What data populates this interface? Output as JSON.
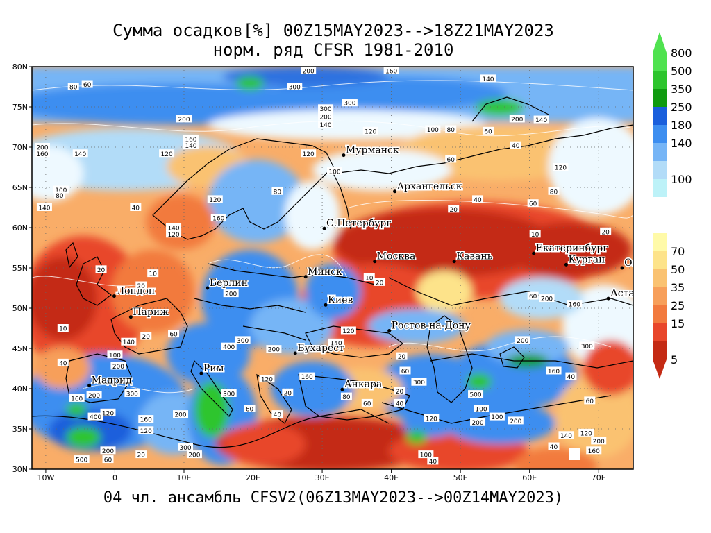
{
  "title_line1": "Сумма осадков[%] 00Z15MAY2023-->18Z21MAY2023",
  "title_line2": "норм. ряд CFSR 1981-2010",
  "footer": "04 чл. ансамбль CFSV2(06Z13MAY2023-->00Z14MAY2023)",
  "map": {
    "lon_range": [
      -12,
      75
    ],
    "lat_range": [
      30,
      80
    ],
    "lon_ticks": [
      {
        "lon": -10,
        "label": "10W"
      },
      {
        "lon": 0,
        "label": "0"
      },
      {
        "lon": 10,
        "label": "10E"
      },
      {
        "lon": 20,
        "label": "20E"
      },
      {
        "lon": 30,
        "label": "30E"
      },
      {
        "lon": 40,
        "label": "40E"
      },
      {
        "lon": 50,
        "label": "50E"
      },
      {
        "lon": 60,
        "label": "60E"
      },
      {
        "lon": 70,
        "label": "70E"
      }
    ],
    "lat_ticks": [
      {
        "lat": 30,
        "label": "30N"
      },
      {
        "lat": 35,
        "label": "35N"
      },
      {
        "lat": 40,
        "label": "40N"
      },
      {
        "lat": 45,
        "label": "45N"
      },
      {
        "lat": 50,
        "label": "50N"
      },
      {
        "lat": 55,
        "label": "55N"
      },
      {
        "lat": 60,
        "label": "60N"
      },
      {
        "lat": 65,
        "label": "65N"
      },
      {
        "lat": 70,
        "label": "70N"
      },
      {
        "lat": 75,
        "label": "75N"
      },
      {
        "lat": 80,
        "label": "80N"
      }
    ],
    "cities": [
      {
        "name": "Мурманск",
        "lon": 33.1,
        "lat": 69.0
      },
      {
        "name": "Архангельск",
        "lon": 40.5,
        "lat": 64.5
      },
      {
        "name": "С.Петербург",
        "lon": 30.3,
        "lat": 59.9
      },
      {
        "name": "Москва",
        "lon": 37.6,
        "lat": 55.8
      },
      {
        "name": "Казань",
        "lon": 49.1,
        "lat": 55.8
      },
      {
        "name": "Екатеринбург",
        "lon": 60.6,
        "lat": 56.8
      },
      {
        "name": "Курган",
        "lon": 65.3,
        "lat": 55.4
      },
      {
        "name": "Омск",
        "lon": 73.4,
        "lat": 55.0
      },
      {
        "name": "Астана",
        "lon": 71.4,
        "lat": 51.2
      },
      {
        "name": "Минск",
        "lon": 27.6,
        "lat": 53.9
      },
      {
        "name": "Берлин",
        "lon": 13.4,
        "lat": 52.5
      },
      {
        "name": "Лондон",
        "lon": -0.1,
        "lat": 51.5
      },
      {
        "name": "Париж",
        "lon": 2.3,
        "lat": 48.9
      },
      {
        "name": "Киев",
        "lon": 30.5,
        "lat": 50.4
      },
      {
        "name": "Ростов-на-Дону",
        "lon": 39.7,
        "lat": 47.2
      },
      {
        "name": "Бухарест",
        "lon": 26.1,
        "lat": 44.4
      },
      {
        "name": "Рим",
        "lon": 12.5,
        "lat": 41.9
      },
      {
        "name": "Мадрид",
        "lon": -3.7,
        "lat": 40.4
      },
      {
        "name": "Анкара",
        "lon": 32.9,
        "lat": 39.9
      }
    ],
    "contour_labels": [
      {
        "v": "200",
        "lon": 28,
        "lat": 79.5
      },
      {
        "v": "160",
        "lon": 40,
        "lat": 79.5
      },
      {
        "v": "80",
        "lon": -6,
        "lat": 77.5
      },
      {
        "v": "60",
        "lon": -4,
        "lat": 77.8
      },
      {
        "v": "300",
        "lon": 26,
        "lat": 77.5
      },
      {
        "v": "300",
        "lon": 34,
        "lat": 75.5
      },
      {
        "v": "200",
        "lon": 10,
        "lat": 73.5
      },
      {
        "v": "140",
        "lon": 54,
        "lat": 78.5
      },
      {
        "v": "300",
        "lon": 30.5,
        "lat": 74.8
      },
      {
        "v": "200",
        "lon": 30.5,
        "lat": 73.8
      },
      {
        "v": "140",
        "lon": 30.5,
        "lat": 72.8
      },
      {
        "v": "120",
        "lon": 37,
        "lat": 72
      },
      {
        "v": "100",
        "lon": 46,
        "lat": 72.2
      },
      {
        "v": "80",
        "lon": 48.6,
        "lat": 72.2
      },
      {
        "v": "200",
        "lon": 58.2,
        "lat": 73.5
      },
      {
        "v": "140",
        "lon": 61.7,
        "lat": 73.4
      },
      {
        "v": "60",
        "lon": 54,
        "lat": 72
      },
      {
        "v": "40",
        "lon": 58,
        "lat": 70.2
      },
      {
        "v": "160",
        "lon": 11,
        "lat": 71
      },
      {
        "v": "140",
        "lon": 11,
        "lat": 70.2
      },
      {
        "v": "120",
        "lon": 7.5,
        "lat": 69.2
      },
      {
        "v": "140",
        "lon": -5,
        "lat": 69.2
      },
      {
        "v": "200",
        "lon": -10.5,
        "lat": 70
      },
      {
        "v": "160",
        "lon": -10.5,
        "lat": 69.2
      },
      {
        "v": "120",
        "lon": 28,
        "lat": 69.2
      },
      {
        "v": "100",
        "lon": 31.8,
        "lat": 67
      },
      {
        "v": "100",
        "lon": -7.8,
        "lat": 64.7
      },
      {
        "v": "80",
        "lon": -8,
        "lat": 64
      },
      {
        "v": "140",
        "lon": -10.2,
        "lat": 62.5
      },
      {
        "v": "40",
        "lon": 3,
        "lat": 62.5
      },
      {
        "v": "120",
        "lon": 14.5,
        "lat": 63.5
      },
      {
        "v": "80",
        "lon": 23.5,
        "lat": 64.5
      },
      {
        "v": "160",
        "lon": 15,
        "lat": 61.2
      },
      {
        "v": "140",
        "lon": 8.5,
        "lat": 60
      },
      {
        "v": "120",
        "lon": 8.5,
        "lat": 59.2
      },
      {
        "v": "60",
        "lon": 48.6,
        "lat": 68.5
      },
      {
        "v": "20",
        "lon": 49,
        "lat": 62.3
      },
      {
        "v": "40",
        "lon": 52.5,
        "lat": 63.5
      },
      {
        "v": "60",
        "lon": 60.5,
        "lat": 63
      },
      {
        "v": "80",
        "lon": 63.5,
        "lat": 64.5
      },
      {
        "v": "120",
        "lon": 64.5,
        "lat": 67.5
      },
      {
        "v": "10",
        "lon": 60.8,
        "lat": 59.2
      },
      {
        "v": "20",
        "lon": 71,
        "lat": 59.5
      },
      {
        "v": "20",
        "lon": -2,
        "lat": 54.8
      },
      {
        "v": "10",
        "lon": 5.5,
        "lat": 54.3
      },
      {
        "v": "20",
        "lon": 3.8,
        "lat": 52.8
      },
      {
        "v": "10",
        "lon": -7.5,
        "lat": 47.5
      },
      {
        "v": "10",
        "lon": 36.8,
        "lat": 53.8
      },
      {
        "v": "20",
        "lon": 38.3,
        "lat": 53.2
      },
      {
        "v": "200",
        "lon": 16.8,
        "lat": 51.8
      },
      {
        "v": "60",
        "lon": 60.5,
        "lat": 51.5
      },
      {
        "v": "200",
        "lon": 62.5,
        "lat": 51.2
      },
      {
        "v": "160",
        "lon": 66.5,
        "lat": 50.5
      },
      {
        "v": "120",
        "lon": 33.8,
        "lat": 47.2
      },
      {
        "v": "140",
        "lon": 32,
        "lat": 45.7
      },
      {
        "v": "20",
        "lon": 41.5,
        "lat": 44
      },
      {
        "v": "60",
        "lon": 42,
        "lat": 42.2
      },
      {
        "v": "200",
        "lon": 59,
        "lat": 46
      },
      {
        "v": "300",
        "lon": 68.3,
        "lat": 45.3
      },
      {
        "v": "140",
        "lon": 2,
        "lat": 45.8
      },
      {
        "v": "20",
        "lon": 4.5,
        "lat": 46.5
      },
      {
        "v": "60",
        "lon": 8.5,
        "lat": 46.8
      },
      {
        "v": "400",
        "lon": 16.5,
        "lat": 45.2
      },
      {
        "v": "300",
        "lon": 18.5,
        "lat": 46
      },
      {
        "v": "200",
        "lon": 23,
        "lat": 44.9
      },
      {
        "v": "40",
        "lon": -7.5,
        "lat": 43.2
      },
      {
        "v": "100",
        "lon": 0,
        "lat": 44.2
      },
      {
        "v": "200",
        "lon": 0.5,
        "lat": 42.8
      },
      {
        "v": "120",
        "lon": 22,
        "lat": 41.2
      },
      {
        "v": "160",
        "lon": 27.8,
        "lat": 41.5
      },
      {
        "v": "500",
        "lon": 16.5,
        "lat": 39.4
      },
      {
        "v": "300",
        "lon": 2.5,
        "lat": 39.4
      },
      {
        "v": "200",
        "lon": -3,
        "lat": 39.2
      },
      {
        "v": "160",
        "lon": -5.5,
        "lat": 38.8
      },
      {
        "v": "400",
        "lon": -2.8,
        "lat": 36.5
      },
      {
        "v": "120",
        "lon": -1,
        "lat": 37
      },
      {
        "v": "160",
        "lon": 4.5,
        "lat": 36.2
      },
      {
        "v": "200",
        "lon": 9.5,
        "lat": 36.8
      },
      {
        "v": "120",
        "lon": 4.5,
        "lat": 34.8
      },
      {
        "v": "60",
        "lon": 19.5,
        "lat": 37.5
      },
      {
        "v": "40",
        "lon": 23.5,
        "lat": 36.8
      },
      {
        "v": "20",
        "lon": 25,
        "lat": 39.5
      },
      {
        "v": "80",
        "lon": 33.5,
        "lat": 39
      },
      {
        "v": "60",
        "lon": 36.5,
        "lat": 38.2
      },
      {
        "v": "40",
        "lon": 41.2,
        "lat": 38.2
      },
      {
        "v": "20",
        "lon": 41.2,
        "lat": 39.7
      },
      {
        "v": "300",
        "lon": 44,
        "lat": 40.8
      },
      {
        "v": "500",
        "lon": 52.2,
        "lat": 39.3
      },
      {
        "v": "100",
        "lon": 53,
        "lat": 37.5
      },
      {
        "v": "200",
        "lon": 52.5,
        "lat": 35.8
      },
      {
        "v": "120",
        "lon": 45.8,
        "lat": 36.3
      },
      {
        "v": "100",
        "lon": 55.3,
        "lat": 36.5
      },
      {
        "v": "200",
        "lon": 58,
        "lat": 36
      },
      {
        "v": "40",
        "lon": 66,
        "lat": 41.5
      },
      {
        "v": "160",
        "lon": 63.5,
        "lat": 42.2
      },
      {
        "v": "60",
        "lon": 68.7,
        "lat": 38.5
      },
      {
        "v": "140",
        "lon": 65.3,
        "lat": 34.2
      },
      {
        "v": "120",
        "lon": 68.2,
        "lat": 34.5
      },
      {
        "v": "200",
        "lon": 70,
        "lat": 33.5
      },
      {
        "v": "40",
        "lon": 63.5,
        "lat": 32.8
      },
      {
        "v": "160",
        "lon": 69.3,
        "lat": 32.3
      },
      {
        "v": "100",
        "lon": 45,
        "lat": 31.8
      },
      {
        "v": "40",
        "lon": 46,
        "lat": 31
      },
      {
        "v": "200",
        "lon": -1,
        "lat": 32.3
      },
      {
        "v": "500",
        "lon": -4.8,
        "lat": 31.2
      },
      {
        "v": "60",
        "lon": -1,
        "lat": 31.2
      },
      {
        "v": "20",
        "lon": 3.8,
        "lat": 31.8
      },
      {
        "v": "300",
        "lon": 10.2,
        "lat": 32.7
      },
      {
        "v": "200",
        "lon": 11.5,
        "lat": 31.8
      }
    ]
  },
  "colorbar": {
    "upper": [
      {
        "color": "#4fe24f",
        "label": "800"
      },
      {
        "color": "#2dc52d",
        "label": "500"
      },
      {
        "color": "#109b10",
        "label": "350"
      },
      {
        "color": "#1a5fdc",
        "label": "250"
      },
      {
        "color": "#3d8ef0",
        "label": "180"
      },
      {
        "color": "#76b5f6",
        "label": "140"
      },
      {
        "color": "#b2dcf8",
        "label": ""
      },
      {
        "color": "#bdf2f8",
        "label": "100"
      }
    ],
    "lower": [
      {
        "color": "#fffaa8",
        "label": "70"
      },
      {
        "color": "#fde38a",
        "label": "50"
      },
      {
        "color": "#fac271",
        "label": "35"
      },
      {
        "color": "#f79f5a",
        "label": "25"
      },
      {
        "color": "#f27a3e",
        "label": "15"
      },
      {
        "color": "#e8462a",
        "label": ""
      },
      {
        "color": "#c42a14",
        "label": "5"
      }
    ]
  }
}
